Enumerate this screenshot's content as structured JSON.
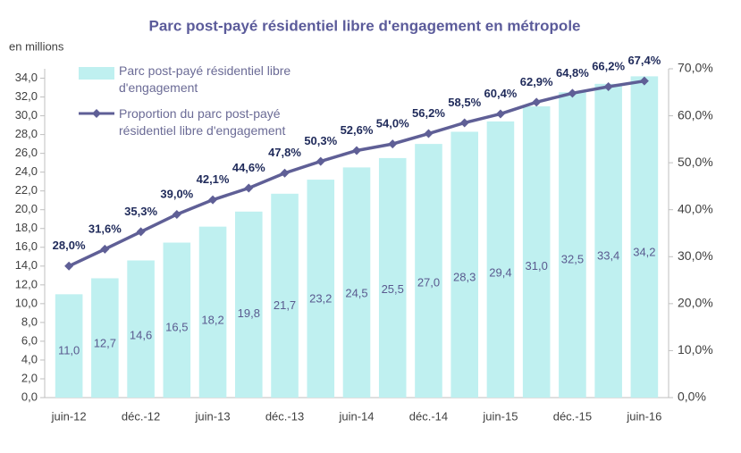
{
  "chart_data": {
    "type": "bar-line",
    "title": "Parc post-payé résidentiel libre d'engagement en métropole",
    "y_axis_label": "en millions",
    "categories": [
      "juin-12",
      null,
      "déc.-12",
      null,
      "juin-13",
      null,
      "déc.-13",
      null,
      "juin-14",
      null,
      "déc.-14",
      null,
      "juin-15",
      null,
      "déc.-15",
      null,
      "juin-16"
    ],
    "series": [
      {
        "name": "Parc post-payé résidentiel libre d'engagement",
        "color": "#bff0f0",
        "type": "bar",
        "values": [
          11.0,
          12.7,
          14.6,
          16.5,
          18.2,
          19.8,
          21.7,
          23.2,
          24.5,
          25.5,
          27.0,
          28.3,
          29.4,
          31.0,
          32.5,
          33.4,
          34.2
        ],
        "value_labels": [
          "11,0",
          "12,7",
          "14,6",
          "16,5",
          "18,2",
          "19,8",
          "21,7",
          "23,2",
          "24,5",
          "25,5",
          "27,0",
          "28,3",
          "29,4",
          "31,0",
          "32,5",
          "33,4",
          "34,2"
        ]
      },
      {
        "name": "Proportion du parc post-payé résidentiel libre d'engagement",
        "color": "#5f5f96",
        "type": "line",
        "axis": "y2",
        "values": [
          28.0,
          31.6,
          35.3,
          39.0,
          42.1,
          44.6,
          47.8,
          50.3,
          52.6,
          54.0,
          56.2,
          58.5,
          60.4,
          62.9,
          64.8,
          66.2,
          67.4
        ],
        "value_labels": [
          "28,0%",
          "31,6%",
          "35,3%",
          "39,0%",
          "42,1%",
          "44,6%",
          "47,8%",
          "50,3%",
          "52,6%",
          "54,0%",
          "56,2%",
          "58,5%",
          "60,4%",
          "62,9%",
          "64,8%",
          "66,2%",
          "67,4%"
        ]
      }
    ],
    "ylim": [
      0,
      35
    ],
    "yticks": [
      {
        "value": 0,
        "label": "0,0"
      },
      {
        "value": 2,
        "label": "2,0"
      },
      {
        "value": 4,
        "label": "4,0"
      },
      {
        "value": 6,
        "label": "6,0"
      },
      {
        "value": 8,
        "label": "8,0"
      },
      {
        "value": 10,
        "label": "10,0"
      },
      {
        "value": 12,
        "label": "12,0"
      },
      {
        "value": 14,
        "label": "14,0"
      },
      {
        "value": 16,
        "label": "16,0"
      },
      {
        "value": 18,
        "label": "18,0"
      },
      {
        "value": 20,
        "label": "20,0"
      },
      {
        "value": 22,
        "label": "22,0"
      },
      {
        "value": 24,
        "label": "24,0"
      },
      {
        "value": 26,
        "label": "26,0"
      },
      {
        "value": 28,
        "label": "28,0"
      },
      {
        "value": 30,
        "label": "30,0"
      },
      {
        "value": 32,
        "label": "32,0"
      },
      {
        "value": 34,
        "label": "34,0"
      }
    ],
    "y2lim": [
      0,
      70
    ],
    "y2ticks": [
      {
        "value": 0,
        "label": "0,0%"
      },
      {
        "value": 10,
        "label": "10,0%"
      },
      {
        "value": 20,
        "label": "20,0%"
      },
      {
        "value": 30,
        "label": "30,0%"
      },
      {
        "value": 40,
        "label": "40,0%"
      },
      {
        "value": 50,
        "label": "50,0%"
      },
      {
        "value": 60,
        "label": "60,0%"
      },
      {
        "value": 70,
        "label": "70,0%"
      }
    ]
  }
}
